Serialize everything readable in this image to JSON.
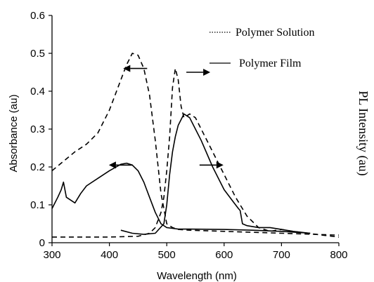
{
  "chart_data": {
    "type": "line",
    "xlabel": "Wavelength (nm)",
    "ylabel": "Absorbance (au)",
    "y2label": "PL Intensity (au)",
    "xlim": [
      300,
      800
    ],
    "ylim": [
      0,
      0.6
    ],
    "x_ticks": [
      "300",
      "400",
      "500",
      "600",
      "700",
      "800"
    ],
    "y_ticks": [
      "0",
      "0.1",
      "0.2",
      "0.3",
      "0.4",
      "0.5",
      "0.6"
    ],
    "legend": {
      "position": "top-right",
      "entries": [
        {
          "label": "Polymer Solution",
          "style": "dotted"
        },
        {
          "label": "Polymer Film",
          "style": "solid"
        }
      ]
    },
    "series": [
      {
        "kind": "absorbance-solution",
        "style": "dashed",
        "x": [
          300,
          320,
          340,
          360,
          380,
          400,
          420,
          430,
          440,
          450,
          460,
          470,
          480,
          490,
          500,
          510,
          520,
          540,
          600,
          700,
          800
        ],
        "y": [
          0.19,
          0.215,
          0.24,
          0.26,
          0.29,
          0.35,
          0.43,
          0.47,
          0.5,
          0.495,
          0.46,
          0.39,
          0.27,
          0.13,
          0.05,
          0.04,
          0.035,
          0.033,
          0.03,
          0.025,
          0.02
        ]
      },
      {
        "kind": "absorbance-film",
        "style": "solid",
        "x": [
          300,
          310,
          316,
          320,
          325,
          340,
          350,
          360,
          380,
          400,
          420,
          430,
          440,
          450,
          460,
          470,
          480,
          490,
          500,
          510,
          520,
          540,
          600,
          650,
          700,
          750
        ],
        "y": [
          0.09,
          0.12,
          0.14,
          0.16,
          0.12,
          0.105,
          0.13,
          0.15,
          0.17,
          0.19,
          0.207,
          0.21,
          0.205,
          0.19,
          0.16,
          0.12,
          0.08,
          0.05,
          0.04,
          0.038,
          0.036,
          0.036,
          0.035,
          0.033,
          0.03,
          0.025
        ]
      },
      {
        "kind": "pl-solution",
        "style": "dashed",
        "x": [
          300,
          400,
          450,
          470,
          480,
          490,
          495,
          500,
          505,
          510,
          515,
          520,
          525,
          530,
          540,
          550,
          560,
          580,
          600,
          620,
          640,
          660,
          680,
          700,
          720,
          760,
          800
        ],
        "y": [
          0.015,
          0.015,
          0.017,
          0.025,
          0.04,
          0.08,
          0.12,
          0.19,
          0.28,
          0.41,
          0.46,
          0.43,
          0.36,
          0.33,
          0.34,
          0.33,
          0.3,
          0.24,
          0.18,
          0.12,
          0.07,
          0.04,
          0.03,
          0.035,
          0.03,
          0.022,
          0.015
        ]
      },
      {
        "kind": "pl-film",
        "style": "solid",
        "x": [
          420,
          440,
          460,
          480,
          495,
          500,
          505,
          510,
          515,
          520,
          530,
          540,
          550,
          560,
          580,
          600,
          615,
          625,
          628,
          632,
          640,
          660,
          680,
          700,
          720,
          750
        ],
        "y": [
          0.033,
          0.025,
          0.022,
          0.025,
          0.05,
          0.1,
          0.18,
          0.24,
          0.28,
          0.31,
          0.34,
          0.33,
          0.3,
          0.27,
          0.2,
          0.14,
          0.11,
          0.09,
          0.085,
          0.05,
          0.045,
          0.04,
          0.04,
          0.035,
          0.03,
          0.025
        ]
      }
    ],
    "arrows": [
      {
        "x": 445,
        "y": 0.46,
        "direction": "left"
      },
      {
        "x": 420,
        "y": 0.205,
        "direction": "left"
      },
      {
        "x": 555,
        "y": 0.45,
        "direction": "right"
      },
      {
        "x": 578,
        "y": 0.205,
        "direction": "right"
      }
    ]
  }
}
